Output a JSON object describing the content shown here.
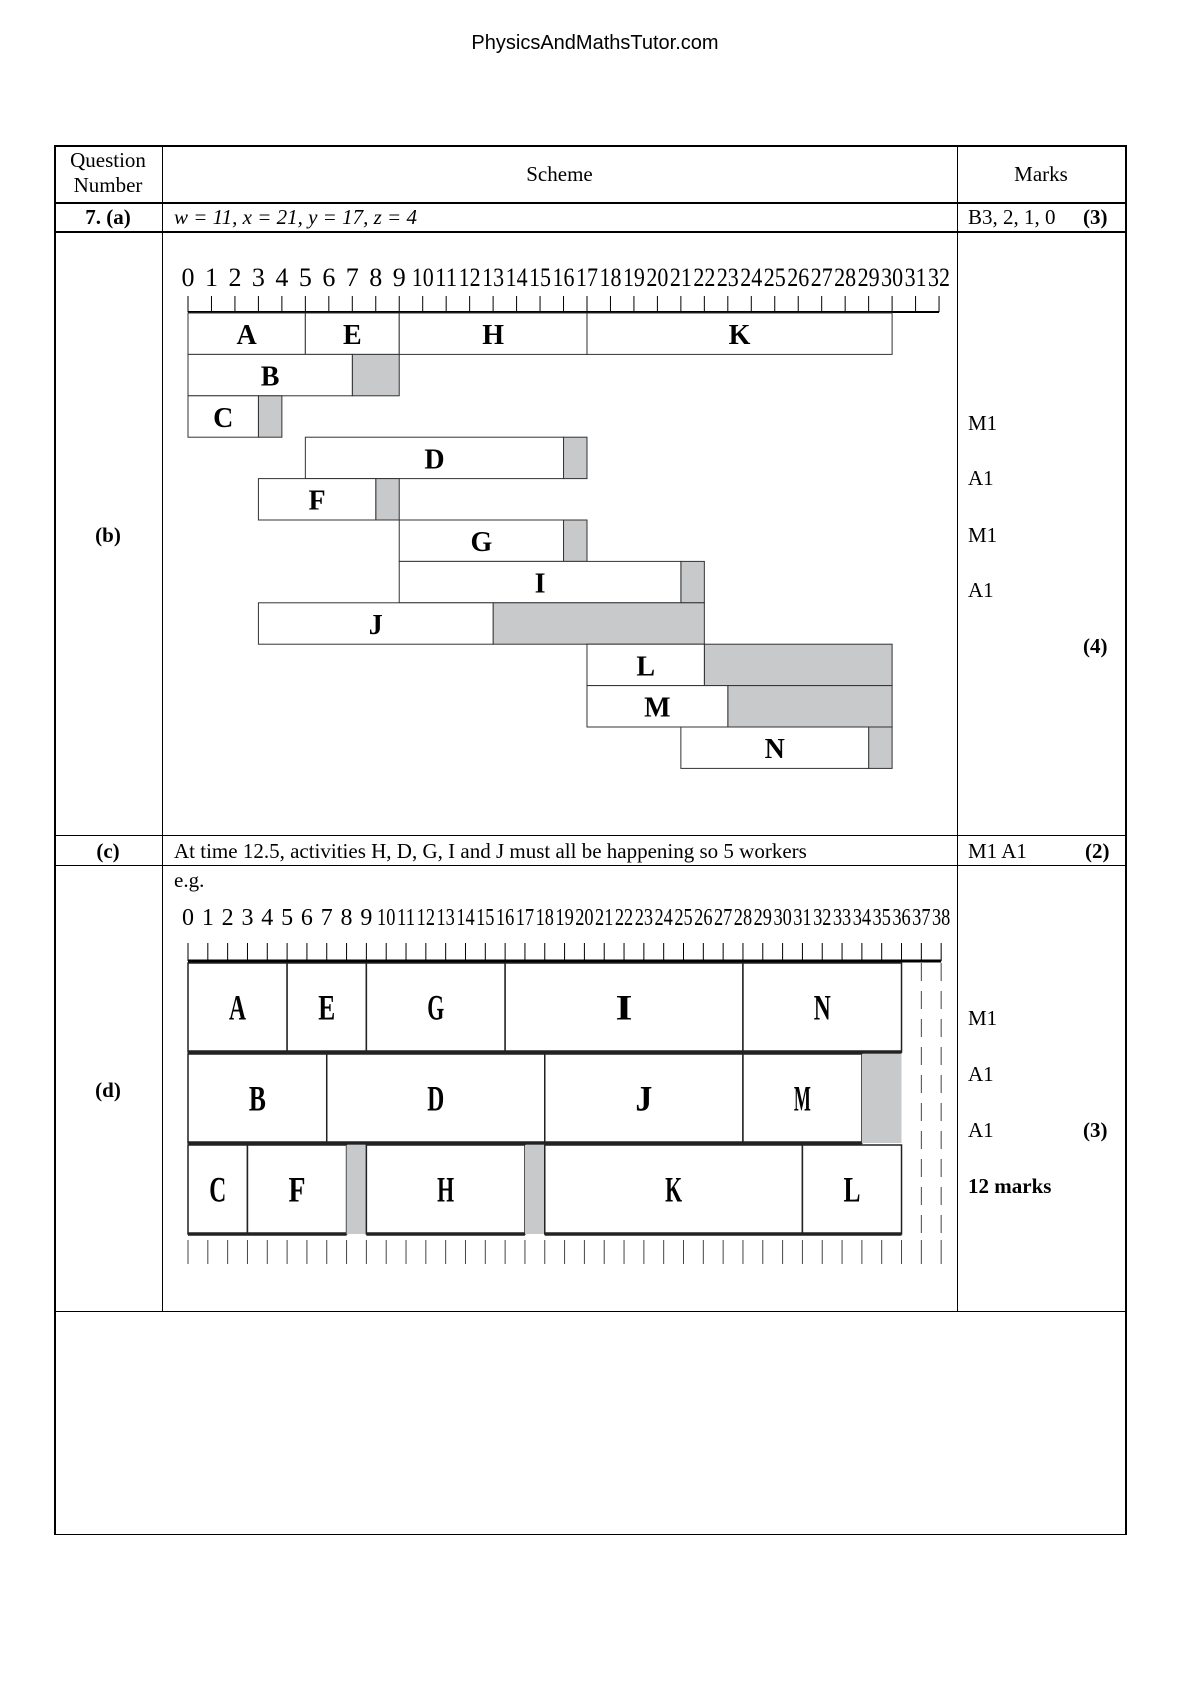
{
  "site": "PhysicsAndMathsTutor.com",
  "header": {
    "question_number_line1": "Question",
    "question_number_line2": "Number",
    "scheme": "Scheme",
    "marks": "Marks"
  },
  "part_a": {
    "label": "7. (a)",
    "scheme": "w = 11, x = 21, y = 17, z = 4",
    "marks": "B3, 2, 1, 0",
    "total": "(3)"
  },
  "part_b": {
    "label": "(b)",
    "marks": [
      "M1",
      "A1",
      "M1",
      "A1"
    ],
    "total": "(4)"
  },
  "part_c": {
    "label": "(c)",
    "scheme": "At time 12.5, activities H, D, G, I and J must all be happening so 5 workers",
    "marks": "M1 A1",
    "total": "(2)"
  },
  "part_d": {
    "label": "(d)",
    "eg": "e.g.",
    "marks": [
      "M1",
      "A1",
      "A1"
    ],
    "total": "(3)",
    "grand_total": "12 marks"
  },
  "cascade_chart": {
    "axis_max": 32,
    "float_color": "#c8c9cb",
    "rows": [
      [
        {
          "name": "A",
          "start": 0,
          "end": 5
        },
        {
          "name": "E",
          "start": 5,
          "end": 9
        },
        {
          "name": "H",
          "start": 9,
          "end": 17
        },
        {
          "name": "K",
          "start": 17,
          "end": 30
        }
      ],
      [
        {
          "name": "B",
          "start": 0,
          "end": 7,
          "float_end": 9
        }
      ],
      [
        {
          "name": "C",
          "start": 0,
          "end": 3,
          "float_end": 4
        }
      ],
      [
        {
          "name": "D",
          "start": 5,
          "end": 16,
          "float_end": 17
        }
      ],
      [
        {
          "name": "F",
          "start": 3,
          "end": 8,
          "float_end": 9
        }
      ],
      [
        {
          "name": "G",
          "start": 9,
          "end": 16,
          "float_end": 17
        }
      ],
      [
        {
          "name": "I",
          "start": 9,
          "end": 21,
          "float_end": 22
        }
      ],
      [
        {
          "name": "J",
          "start": 3,
          "end": 13,
          "float_end": 22
        }
      ],
      [
        {
          "name": "L",
          "start": 17,
          "end": 22,
          "float_end": 30
        }
      ],
      [
        {
          "name": "M",
          "start": 17,
          "end": 23,
          "float_end": 30
        }
      ],
      [
        {
          "name": "N",
          "start": 21,
          "end": 29,
          "float_end": 30
        }
      ]
    ]
  },
  "scheduling_chart": {
    "axis_max": 38,
    "rows": [
      [
        {
          "name": "A",
          "start": 0,
          "end": 5
        },
        {
          "name": "E",
          "start": 5,
          "end": 9
        },
        {
          "name": "G",
          "start": 9,
          "end": 16
        },
        {
          "name": "I",
          "start": 16,
          "end": 28
        },
        {
          "name": "N",
          "start": 28,
          "end": 36
        }
      ],
      [
        {
          "name": "B",
          "start": 0,
          "end": 7
        },
        {
          "name": "D",
          "start": 7,
          "end": 18
        },
        {
          "name": "J",
          "start": 18,
          "end": 28
        },
        {
          "name": "M",
          "start": 28,
          "end": 34
        },
        {
          "name": "",
          "start": 34,
          "end": 36,
          "idle": true
        }
      ],
      [
        {
          "name": "C",
          "start": 0,
          "end": 3
        },
        {
          "name": "F",
          "start": 3,
          "end": 8
        },
        {
          "name": "",
          "start": 8,
          "end": 9,
          "idle": true
        },
        {
          "name": "H",
          "start": 9,
          "end": 17
        },
        {
          "name": "",
          "start": 17,
          "end": 18,
          "idle": true
        },
        {
          "name": "K",
          "start": 18,
          "end": 31
        },
        {
          "name": "L",
          "start": 31,
          "end": 36
        }
      ]
    ]
  }
}
